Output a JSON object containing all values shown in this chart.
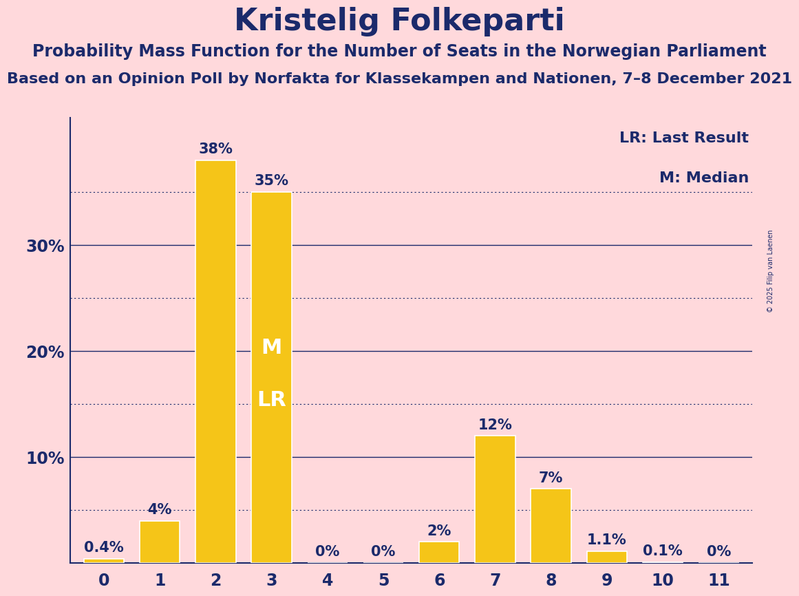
{
  "title": "Kristelig Folkeparti",
  "subtitle1": "Probability Mass Function for the Number of Seats in the Norwegian Parliament",
  "subtitle2": "Based on an Opinion Poll by Norfakta for Klassekampen and Nationen, 7–8 December 2021",
  "copyright": "© 2025 Filip van Laenen",
  "categories": [
    0,
    1,
    2,
    3,
    4,
    5,
    6,
    7,
    8,
    9,
    10,
    11
  ],
  "values": [
    0.4,
    4,
    38,
    35,
    0,
    0,
    2,
    12,
    7,
    1.1,
    0.1,
    0
  ],
  "bar_labels": [
    "0.4%",
    "4%",
    "38%",
    "35%",
    "0%",
    "0%",
    "2%",
    "12%",
    "7%",
    "1.1%",
    "0.1%",
    "0%"
  ],
  "bar_color": "#F5C518",
  "bar_edge_color": "#FFFFFF",
  "background_color": "#FFD9DC",
  "text_color": "#1B2A6B",
  "title_fontsize": 32,
  "subtitle1_fontsize": 17,
  "subtitle2_fontsize": 16,
  "bar_label_fontsize": 15,
  "axis_tick_fontsize": 17,
  "legend_fontsize": 16,
  "median_bar": 3,
  "last_result_bar": 3,
  "median_label": "M",
  "lr_label": "LR",
  "label_color_on_bar": "#FFFFFF",
  "solid_yticks": [
    10,
    20,
    30
  ],
  "dotted_yticks": [
    5,
    15,
    25,
    35
  ],
  "ylim": [
    0,
    42
  ]
}
